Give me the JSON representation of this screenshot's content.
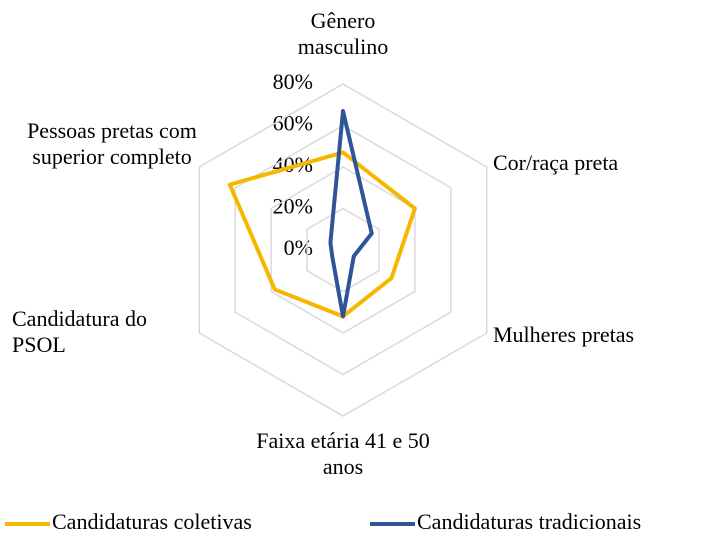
{
  "chart_data": {
    "type": "radar",
    "categories": [
      "Gênero masculino",
      "Cor/raça preta",
      "Mulheres pretas",
      "Faixa etária 41 e 50 anos",
      "Candidatura do PSOL",
      "Pessoas pretas com superior completo"
    ],
    "series": [
      {
        "name": "Candidaturas coletivas",
        "color": "#f5b700",
        "values": [
          47,
          40,
          27,
          32,
          38,
          63
        ]
      },
      {
        "name": "Candidaturas tradicionais",
        "color": "#2f5597",
        "values": [
          67,
          16,
          6,
          32,
          6,
          7
        ]
      }
    ],
    "ylim": [
      0,
      80
    ],
    "yticks": [
      {
        "value": 0,
        "label": "0%"
      },
      {
        "value": 20,
        "label": "20%"
      },
      {
        "value": 40,
        "label": "40%"
      },
      {
        "value": 60,
        "label": "60%"
      },
      {
        "value": 80,
        "label": "80%"
      }
    ],
    "grid": true
  }
}
